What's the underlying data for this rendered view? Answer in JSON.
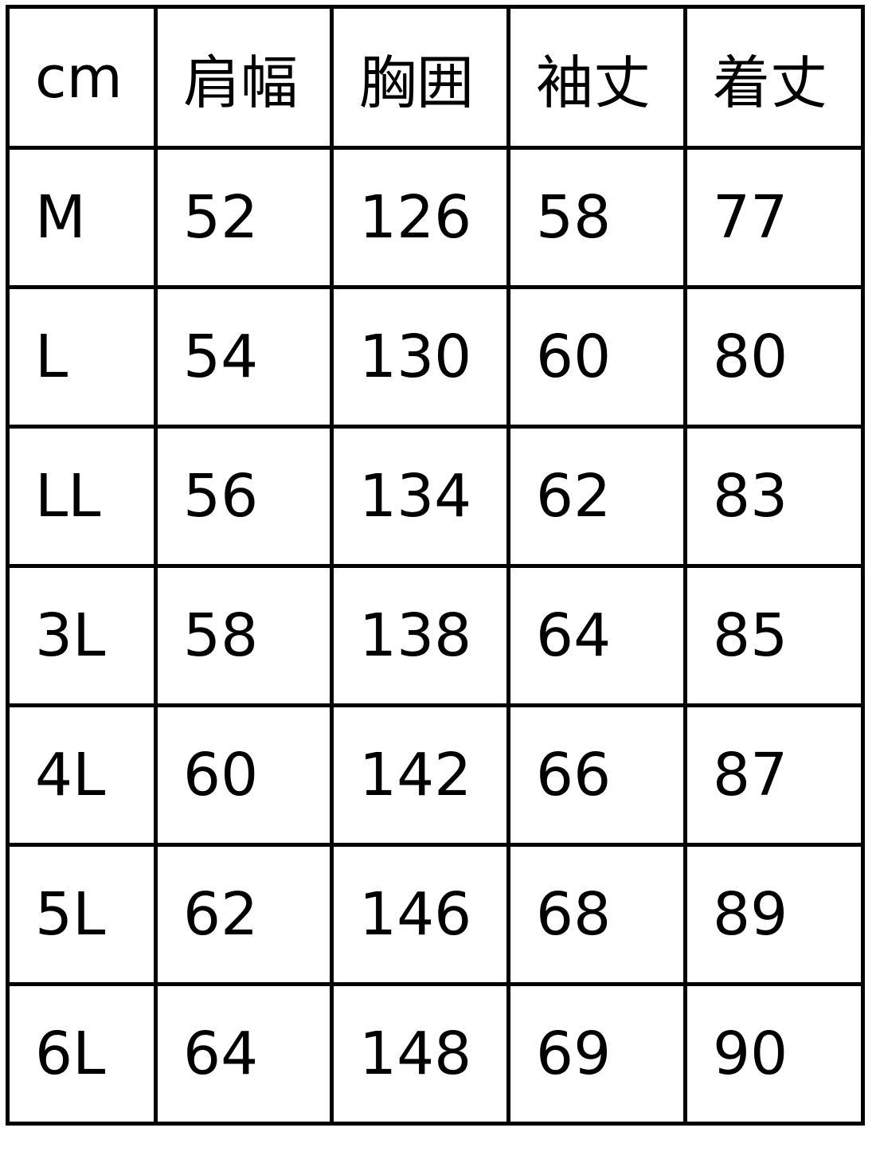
{
  "table": {
    "headers": [
      "cm",
      "肩幅",
      "胸囲",
      "袖丈",
      "着丈"
    ],
    "rows": [
      [
        "M",
        "52",
        "126",
        "58",
        "77"
      ],
      [
        "L",
        "54",
        "130",
        "60",
        "80"
      ],
      [
        "LL",
        "56",
        "134",
        "62",
        "83"
      ],
      [
        "3L",
        "58",
        "138",
        "64",
        "85"
      ],
      [
        "4L",
        "60",
        "142",
        "66",
        "87"
      ],
      [
        "5L",
        "62",
        "146",
        "68",
        "89"
      ],
      [
        "6L",
        "64",
        "148",
        "69",
        "90"
      ]
    ]
  }
}
